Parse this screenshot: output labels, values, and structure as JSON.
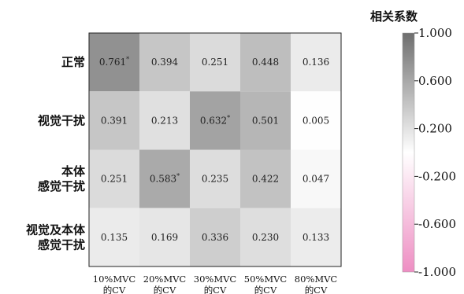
{
  "chart_data": {
    "type": "heatmap",
    "rows": [
      "正常",
      "视觉干扰",
      "本体\n感觉干扰",
      "视觉及本体\n感觉干扰"
    ],
    "columns": [
      "10%MVC\n的CV",
      "20%MVC\n的CV",
      "30%MVC\n的CV",
      "50%MVC\n的CV",
      "80%MVC\n的CV"
    ],
    "values": [
      [
        0.761,
        0.394,
        0.251,
        0.448,
        0.136
      ],
      [
        0.391,
        0.213,
        0.632,
        0.501,
        0.005
      ],
      [
        0.251,
        0.583,
        0.235,
        0.422,
        0.047
      ],
      [
        0.135,
        0.169,
        0.336,
        0.23,
        0.133
      ]
    ],
    "labels": [
      [
        "0.761*",
        "0.394",
        "0.251",
        "0.448",
        "0.136"
      ],
      [
        "0.391",
        "0.213",
        "0.632*",
        "0.501",
        "0.005"
      ],
      [
        "0.251",
        "0.583*",
        "0.235",
        "0.422",
        "0.047"
      ],
      [
        "0.135",
        "0.169",
        "0.336",
        "0.230",
        "0.133"
      ]
    ],
    "colorbar": {
      "title": "相关系数",
      "range": [
        -1.0,
        1.0
      ],
      "ticks": [
        "1.000",
        "0.600",
        "0.200",
        "-0.200",
        "-0.600",
        "-1.000"
      ],
      "tick_values": [
        1.0,
        0.6,
        0.2,
        -0.2,
        -0.6,
        -1.0
      ],
      "color_high": "#6e6e6e",
      "color_mid": "#ffffff",
      "color_low": "#ee8ec3"
    }
  }
}
